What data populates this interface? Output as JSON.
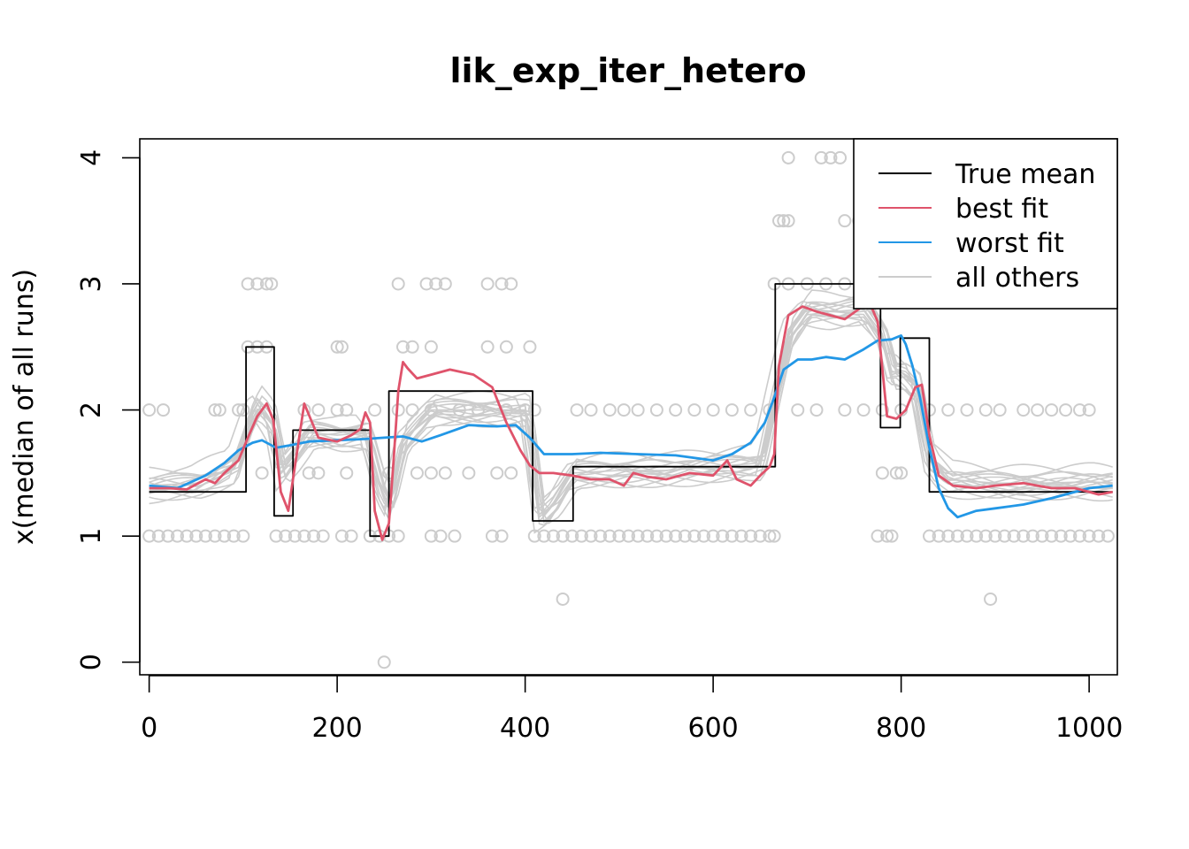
{
  "chart_data": {
    "type": "line",
    "title": "lik_exp_iter_hetero",
    "xlabel": "",
    "ylabel": "x(median of all runs)",
    "xlim": [
      -10,
      1030
    ],
    "ylim": [
      -0.1,
      4.15
    ],
    "x_ticks": [
      0,
      200,
      400,
      600,
      800,
      1000
    ],
    "y_ticks": [
      0,
      1,
      2,
      3,
      4
    ],
    "grid": false,
    "legend_position": "top-right",
    "legend": [
      {
        "label": "True mean",
        "color": "#000000"
      },
      {
        "label": "best fit",
        "color": "#DF536B"
      },
      {
        "label": "worst fit",
        "color": "#2297E6"
      },
      {
        "label": "all others",
        "color": "#CCCCCC"
      }
    ],
    "colors": {
      "true_mean": "#000000",
      "best_fit": "#DF536B",
      "worst_fit": "#2297E6",
      "others": "#CCCCCC"
    },
    "series": [
      {
        "name": "True mean",
        "type": "step",
        "x": [
          0,
          103,
          103,
          133,
          133,
          153,
          153,
          235,
          235,
          255,
          255,
          408,
          408,
          451,
          451,
          666,
          666,
          778,
          778,
          799,
          799,
          830,
          830,
          1025
        ],
        "y": [
          1.35,
          1.35,
          2.5,
          2.5,
          1.16,
          1.16,
          1.84,
          1.84,
          1.0,
          1.0,
          2.15,
          2.15,
          1.12,
          1.12,
          1.55,
          1.55,
          3.0,
          3.0,
          1.86,
          1.86,
          2.57,
          2.57,
          1.35,
          1.35
        ]
      },
      {
        "name": "best fit",
        "x": [
          0,
          20,
          40,
          60,
          70,
          80,
          95,
          105,
          115,
          125,
          132,
          140,
          148,
          155,
          165,
          180,
          200,
          215,
          225,
          230,
          235,
          240,
          248,
          255,
          260,
          265,
          270,
          275,
          285,
          300,
          320,
          345,
          365,
          380,
          395,
          405,
          415,
          430,
          450,
          470,
          490,
          505,
          515,
          530,
          550,
          575,
          600,
          615,
          625,
          640,
          650,
          660,
          665,
          670,
          680,
          695,
          710,
          725,
          740,
          755,
          765,
          775,
          785,
          795,
          805,
          815,
          822,
          830,
          840,
          855,
          880,
          900,
          930,
          960,
          985,
          1010,
          1025
        ],
        "y": [
          1.38,
          1.38,
          1.37,
          1.45,
          1.42,
          1.5,
          1.6,
          1.78,
          1.95,
          2.05,
          1.92,
          1.35,
          1.2,
          1.55,
          2.05,
          1.78,
          1.75,
          1.8,
          1.85,
          1.98,
          1.9,
          1.2,
          0.97,
          1.1,
          1.6,
          2.15,
          2.38,
          2.33,
          2.25,
          2.28,
          2.32,
          2.28,
          2.18,
          1.9,
          1.68,
          1.56,
          1.5,
          1.5,
          1.48,
          1.45,
          1.45,
          1.4,
          1.5,
          1.47,
          1.45,
          1.5,
          1.48,
          1.6,
          1.45,
          1.4,
          1.48,
          1.55,
          1.65,
          2.35,
          2.75,
          2.82,
          2.78,
          2.75,
          2.72,
          2.8,
          2.88,
          2.7,
          1.95,
          1.93,
          2.0,
          2.18,
          2.2,
          1.8,
          1.48,
          1.4,
          1.38,
          1.4,
          1.42,
          1.38,
          1.38,
          1.33,
          1.35
        ]
      },
      {
        "name": "worst fit",
        "x": [
          0,
          30,
          60,
          80,
          95,
          110,
          120,
          135,
          150,
          170,
          200,
          230,
          250,
          270,
          290,
          310,
          340,
          370,
          390,
          405,
          420,
          450,
          480,
          520,
          560,
          600,
          620,
          640,
          655,
          665,
          675,
          690,
          705,
          720,
          740,
          760,
          775,
          790,
          800,
          805,
          812,
          820,
          830,
          840,
          850,
          860,
          880,
          900,
          930,
          960,
          1000,
          1025
        ],
        "y": [
          1.4,
          1.38,
          1.48,
          1.58,
          1.68,
          1.74,
          1.76,
          1.7,
          1.72,
          1.75,
          1.76,
          1.77,
          1.78,
          1.79,
          1.75,
          1.8,
          1.88,
          1.87,
          1.88,
          1.78,
          1.65,
          1.65,
          1.66,
          1.65,
          1.64,
          1.6,
          1.65,
          1.74,
          1.9,
          2.1,
          2.32,
          2.4,
          2.4,
          2.42,
          2.4,
          2.48,
          2.55,
          2.56,
          2.59,
          2.52,
          2.35,
          2.1,
          1.7,
          1.38,
          1.22,
          1.15,
          1.2,
          1.22,
          1.25,
          1.3,
          1.38,
          1.4
        ]
      },
      {
        "name": "all others",
        "x": [
          0,
          50,
          90,
          105,
          115,
          130,
          140,
          155,
          170,
          200,
          230,
          245,
          255,
          270,
          300,
          340,
          380,
          400,
          408,
          415,
          430,
          450,
          500,
          550,
          600,
          650,
          665,
          680,
          700,
          730,
          760,
          780,
          790,
          800,
          815,
          830,
          850,
          900,
          950,
          1000,
          1025
        ],
        "y": [
          1.4,
          1.42,
          1.55,
          1.9,
          2.05,
          1.9,
          1.5,
          1.65,
          1.82,
          1.8,
          1.82,
          1.4,
          1.25,
          1.75,
          2.0,
          2.0,
          2.0,
          2.0,
          1.6,
          1.15,
          1.25,
          1.5,
          1.52,
          1.52,
          1.55,
          1.58,
          2.1,
          2.6,
          2.8,
          2.78,
          2.8,
          2.6,
          2.3,
          2.3,
          2.2,
          1.6,
          1.45,
          1.42,
          1.42,
          1.43,
          1.42
        ]
      }
    ],
    "observations": {
      "color": "#CCCCCC",
      "points": [
        [
          0,
          2
        ],
        [
          15,
          2
        ],
        [
          70,
          2
        ],
        [
          75,
          2
        ],
        [
          95,
          2
        ],
        [
          100,
          2
        ],
        [
          165,
          2
        ],
        [
          180,
          2
        ],
        [
          200,
          2
        ],
        [
          210,
          2
        ],
        [
          240,
          2
        ],
        [
          265,
          2
        ],
        [
          280,
          2
        ],
        [
          300,
          2
        ],
        [
          330,
          2
        ],
        [
          350,
          2
        ],
        [
          380,
          2
        ],
        [
          400,
          2
        ],
        [
          410,
          2
        ],
        [
          455,
          2
        ],
        [
          470,
          2
        ],
        [
          490,
          2
        ],
        [
          505,
          2
        ],
        [
          520,
          2
        ],
        [
          540,
          2
        ],
        [
          560,
          2
        ],
        [
          580,
          2
        ],
        [
          600,
          2
        ],
        [
          620,
          2
        ],
        [
          640,
          2
        ],
        [
          660,
          2
        ],
        [
          690,
          2
        ],
        [
          710,
          2
        ],
        [
          740,
          2
        ],
        [
          760,
          2
        ],
        [
          780,
          2
        ],
        [
          800,
          2
        ],
        [
          830,
          2
        ],
        [
          850,
          2
        ],
        [
          870,
          2
        ],
        [
          890,
          2
        ],
        [
          905,
          2
        ],
        [
          930,
          2
        ],
        [
          945,
          2
        ],
        [
          960,
          2
        ],
        [
          975,
          2
        ],
        [
          990,
          2
        ],
        [
          1000,
          2
        ],
        [
          105,
          2.5
        ],
        [
          115,
          2.5
        ],
        [
          125,
          2.5
        ],
        [
          200,
          2.5
        ],
        [
          205,
          2.5
        ],
        [
          270,
          2.5
        ],
        [
          280,
          2.5
        ],
        [
          300,
          2.5
        ],
        [
          360,
          2.5
        ],
        [
          380,
          2.5
        ],
        [
          405,
          2.5
        ],
        [
          105,
          3
        ],
        [
          115,
          3
        ],
        [
          125,
          3
        ],
        [
          130,
          3
        ],
        [
          265,
          3
        ],
        [
          295,
          3
        ],
        [
          305,
          3
        ],
        [
          315,
          3
        ],
        [
          360,
          3
        ],
        [
          375,
          3
        ],
        [
          385,
          3
        ],
        [
          665,
          3
        ],
        [
          680,
          3
        ],
        [
          700,
          3
        ],
        [
          720,
          3
        ],
        [
          740,
          3
        ],
        [
          760,
          3
        ],
        [
          670,
          3.5
        ],
        [
          675,
          3.5
        ],
        [
          680,
          3.5
        ],
        [
          740,
          3.5
        ],
        [
          755,
          3.5
        ],
        [
          680,
          4
        ],
        [
          715,
          4
        ],
        [
          725,
          4
        ],
        [
          735,
          4
        ],
        [
          760,
          4
        ],
        [
          0,
          1
        ],
        [
          10,
          1
        ],
        [
          20,
          1
        ],
        [
          30,
          1
        ],
        [
          40,
          1
        ],
        [
          50,
          1
        ],
        [
          60,
          1
        ],
        [
          70,
          1
        ],
        [
          80,
          1
        ],
        [
          90,
          1
        ],
        [
          100,
          1
        ],
        [
          135,
          1
        ],
        [
          145,
          1
        ],
        [
          155,
          1
        ],
        [
          165,
          1
        ],
        [
          175,
          1
        ],
        [
          185,
          1
        ],
        [
          205,
          1
        ],
        [
          215,
          1
        ],
        [
          235,
          1
        ],
        [
          245,
          1
        ],
        [
          255,
          1
        ],
        [
          265,
          1
        ],
        [
          300,
          1
        ],
        [
          310,
          1
        ],
        [
          325,
          1
        ],
        [
          365,
          1
        ],
        [
          375,
          1
        ],
        [
          410,
          1
        ],
        [
          420,
          1
        ],
        [
          430,
          1
        ],
        [
          440,
          1
        ],
        [
          450,
          1
        ],
        [
          460,
          1
        ],
        [
          470,
          1
        ],
        [
          480,
          1
        ],
        [
          490,
          1
        ],
        [
          500,
          1
        ],
        [
          510,
          1
        ],
        [
          520,
          1
        ],
        [
          530,
          1
        ],
        [
          540,
          1
        ],
        [
          550,
          1
        ],
        [
          560,
          1
        ],
        [
          570,
          1
        ],
        [
          580,
          1
        ],
        [
          590,
          1
        ],
        [
          600,
          1
        ],
        [
          610,
          1
        ],
        [
          620,
          1
        ],
        [
          630,
          1
        ],
        [
          640,
          1
        ],
        [
          650,
          1
        ],
        [
          660,
          1
        ],
        [
          665,
          1
        ],
        [
          775,
          1
        ],
        [
          785,
          1
        ],
        [
          790,
          1
        ],
        [
          830,
          1
        ],
        [
          840,
          1
        ],
        [
          850,
          1
        ],
        [
          860,
          1
        ],
        [
          870,
          1
        ],
        [
          880,
          1
        ],
        [
          890,
          1
        ],
        [
          900,
          1
        ],
        [
          910,
          1
        ],
        [
          920,
          1
        ],
        [
          930,
          1
        ],
        [
          940,
          1
        ],
        [
          950,
          1
        ],
        [
          960,
          1
        ],
        [
          970,
          1
        ],
        [
          980,
          1
        ],
        [
          990,
          1
        ],
        [
          1000,
          1
        ],
        [
          1010,
          1
        ],
        [
          1020,
          1
        ],
        [
          120,
          1.5
        ],
        [
          170,
          1.5
        ],
        [
          180,
          1.5
        ],
        [
          210,
          1.5
        ],
        [
          255,
          1.5
        ],
        [
          285,
          1.5
        ],
        [
          300,
          1.5
        ],
        [
          315,
          1.5
        ],
        [
          340,
          1.5
        ],
        [
          370,
          1.5
        ],
        [
          385,
          1.5
        ],
        [
          780,
          1.5
        ],
        [
          795,
          1.5
        ],
        [
          800,
          1.5
        ],
        [
          440,
          0.5
        ],
        [
          895,
          0.5
        ],
        [
          250,
          0
        ]
      ]
    }
  }
}
